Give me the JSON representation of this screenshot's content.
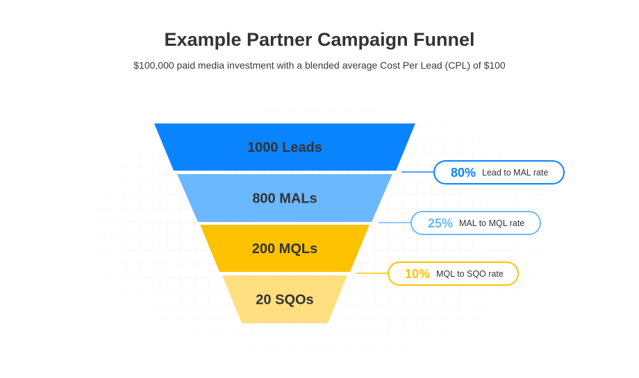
{
  "header": {
    "title": "Example Partner Campaign Funnel",
    "subtitle": "$100,000 paid media investment with a blended average Cost Per Lead (CPL) of $100"
  },
  "funnel": {
    "stages": [
      {
        "label": "1000 Leads",
        "value": 1000,
        "color": "#0A84FF"
      },
      {
        "label": "800 MALs",
        "value": 800,
        "color": "#6BB8FF"
      },
      {
        "label": "200 MQLs",
        "value": 200,
        "color": "#FFC200"
      },
      {
        "label": "20 SQOs",
        "value": 20,
        "color": "#FFDF80"
      }
    ],
    "rates": [
      {
        "percent": "80%",
        "label": "Lead to MAL rate",
        "color": "#0A84FF"
      },
      {
        "percent": "25%",
        "label": "MAL to MQL rate",
        "color": "#6BB8FF"
      },
      {
        "percent": "10%",
        "label": "MQL to SQO rate",
        "color": "#FFC200"
      }
    ]
  }
}
